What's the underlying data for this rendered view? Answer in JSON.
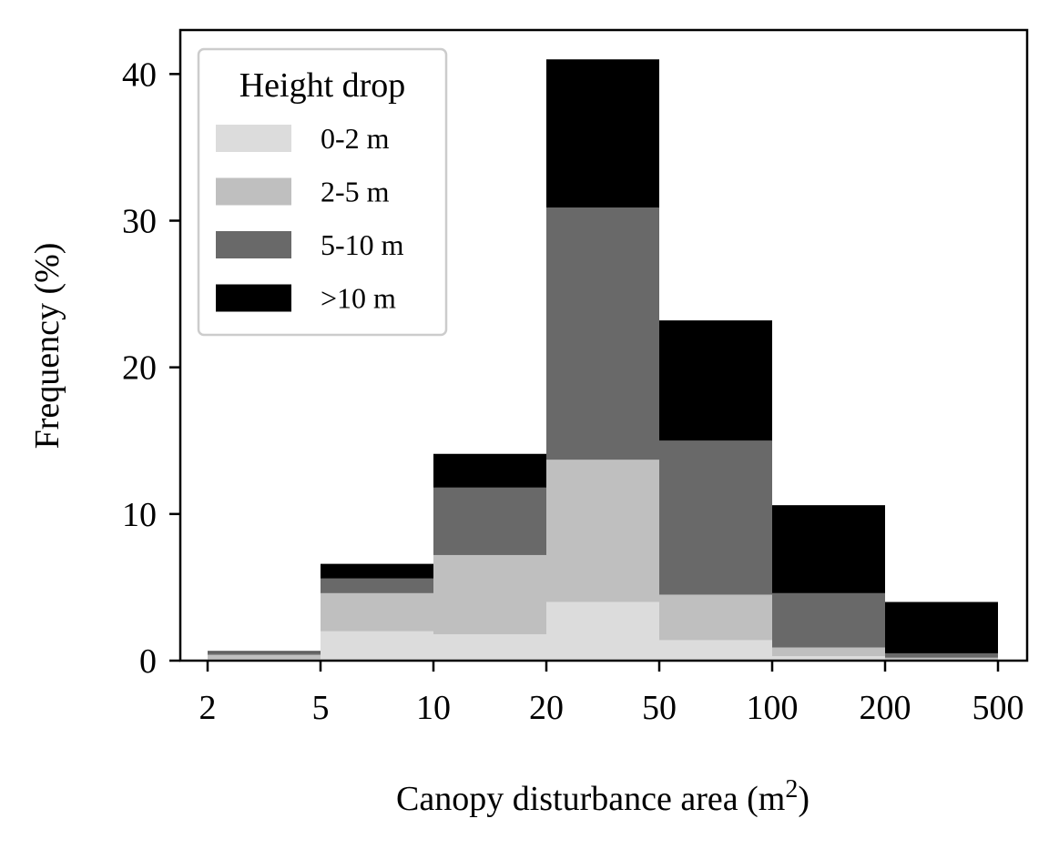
{
  "chart_data": {
    "type": "bar",
    "stacked": true,
    "x_scale": "log",
    "bin_edges": [
      2,
      5,
      10,
      20,
      50,
      100,
      200,
      500
    ],
    "x_tick_labels": [
      "2",
      "5",
      "10",
      "20",
      "50",
      "100",
      "200",
      "500"
    ],
    "xlabel": "Canopy disturbance area (m",
    "xlabel_superscript": "2",
    "xlabel_suffix": ")",
    "ylabel": "Frequency (%)",
    "ylim": [
      0,
      43
    ],
    "y_ticks": [
      0,
      10,
      20,
      30,
      40
    ],
    "grid": false,
    "legend": {
      "title": "Height drop",
      "position": "top-left"
    },
    "series": [
      {
        "name": "0-2 m",
        "color": "#dcdcdc",
        "values": [
          0.1,
          2.0,
          1.8,
          4.0,
          1.4,
          0.3,
          0.1
        ]
      },
      {
        "name": "2-5 m",
        "color": "#bfbfbf",
        "values": [
          0.3,
          2.6,
          5.4,
          9.7,
          3.1,
          0.6,
          0.1
        ]
      },
      {
        "name": "5-10 m",
        "color": "#696969",
        "values": [
          0.2,
          1.0,
          4.6,
          17.2,
          10.5,
          3.7,
          0.3
        ]
      },
      {
        "name": ">10 m",
        "color": "#000000",
        "values": [
          0.05,
          1.0,
          2.3,
          10.1,
          8.2,
          6.0,
          3.5
        ]
      }
    ]
  }
}
